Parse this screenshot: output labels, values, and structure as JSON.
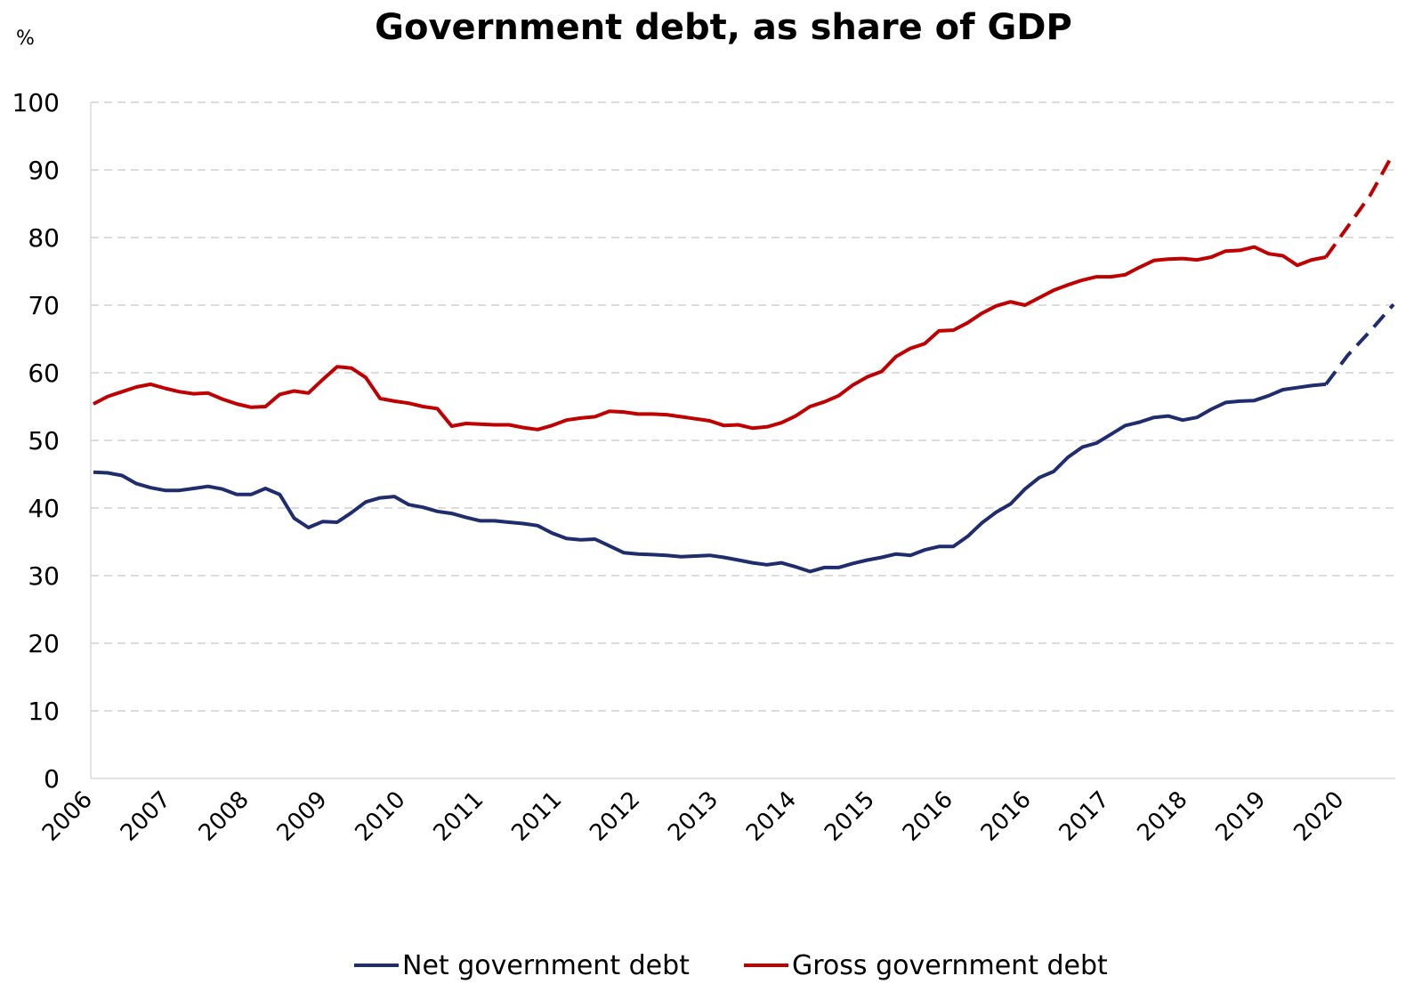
{
  "chart_data": {
    "type": "line",
    "title": "Government debt, as share of GDP",
    "unit_label": "%",
    "ylim": [
      0,
      100
    ],
    "yticks": [
      0,
      10,
      20,
      30,
      40,
      50,
      60,
      70,
      80,
      90,
      100
    ],
    "x_tick_labels": [
      "2006",
      "2007",
      "2008",
      "2009",
      "2010",
      "2011",
      "2011",
      "2012",
      "2013",
      "2014",
      "2015",
      "2016",
      "2016",
      "2017",
      "2018",
      "2019",
      "2020"
    ],
    "grid": true,
    "grid_style": "dashed horizontal",
    "legend_position": "bottom",
    "series": [
      {
        "name": "Net government debt",
        "color": "#1f2d6e",
        "values": [
          45.3,
          45.2,
          44.8,
          43.6,
          43.0,
          42.6,
          42.6,
          42.9,
          43.2,
          42.8,
          42.0,
          42.0,
          42.9,
          42.0,
          38.5,
          37.1,
          38.0,
          37.9,
          39.3,
          40.9,
          41.5,
          41.7,
          40.5,
          40.1,
          39.5,
          39.2,
          38.6,
          38.1,
          38.1,
          37.9,
          37.7,
          37.4,
          36.3,
          35.5,
          35.3,
          35.4,
          34.4,
          33.4,
          33.2,
          33.1,
          33.0,
          32.8,
          32.9,
          33.0,
          32.7,
          32.3,
          31.9,
          31.6,
          31.9,
          31.3,
          30.6,
          31.2,
          31.2,
          31.8,
          32.3,
          32.7,
          33.2,
          33.0,
          33.8,
          34.3,
          34.3,
          35.8,
          37.8,
          39.4,
          40.6,
          42.8,
          44.5,
          45.4,
          47.5,
          49.0,
          49.6,
          50.9,
          52.2,
          52.7,
          53.4,
          53.6,
          53.0,
          53.4,
          54.6,
          55.6,
          55.8,
          55.9,
          56.6,
          57.5,
          57.8,
          58.1,
          58.3
        ],
        "projection": [
          58.3,
          62.5,
          66.2,
          70.1
        ]
      },
      {
        "name": "Gross government debt",
        "color": "#c00000",
        "values": [
          55.4,
          56.5,
          57.2,
          57.9,
          58.3,
          57.7,
          57.2,
          56.9,
          57.0,
          56.1,
          55.4,
          54.9,
          55.0,
          56.8,
          57.3,
          57.0,
          59.0,
          60.9,
          60.7,
          59.3,
          56.2,
          55.8,
          55.5,
          55.0,
          54.7,
          52.1,
          52.5,
          52.4,
          52.3,
          52.3,
          51.9,
          51.6,
          52.2,
          53.0,
          53.3,
          53.5,
          54.3,
          54.2,
          53.9,
          53.9,
          53.8,
          53.5,
          53.2,
          52.9,
          52.2,
          52.3,
          51.8,
          52.0,
          52.6,
          53.6,
          55.0,
          55.7,
          56.6,
          58.2,
          59.4,
          60.2,
          62.4,
          63.6,
          64.3,
          66.2,
          66.3,
          67.4,
          68.8,
          69.9,
          70.5,
          70.0,
          71.1,
          72.2,
          73.0,
          73.7,
          74.2,
          74.2,
          74.5,
          75.6,
          76.6,
          76.8,
          76.9,
          76.7,
          77.1,
          78.0,
          78.1,
          78.6,
          77.6,
          77.3,
          75.9,
          76.7,
          77.1
        ],
        "projection": [
          77.1,
          81.5,
          86.3,
          92.5
        ]
      }
    ]
  }
}
